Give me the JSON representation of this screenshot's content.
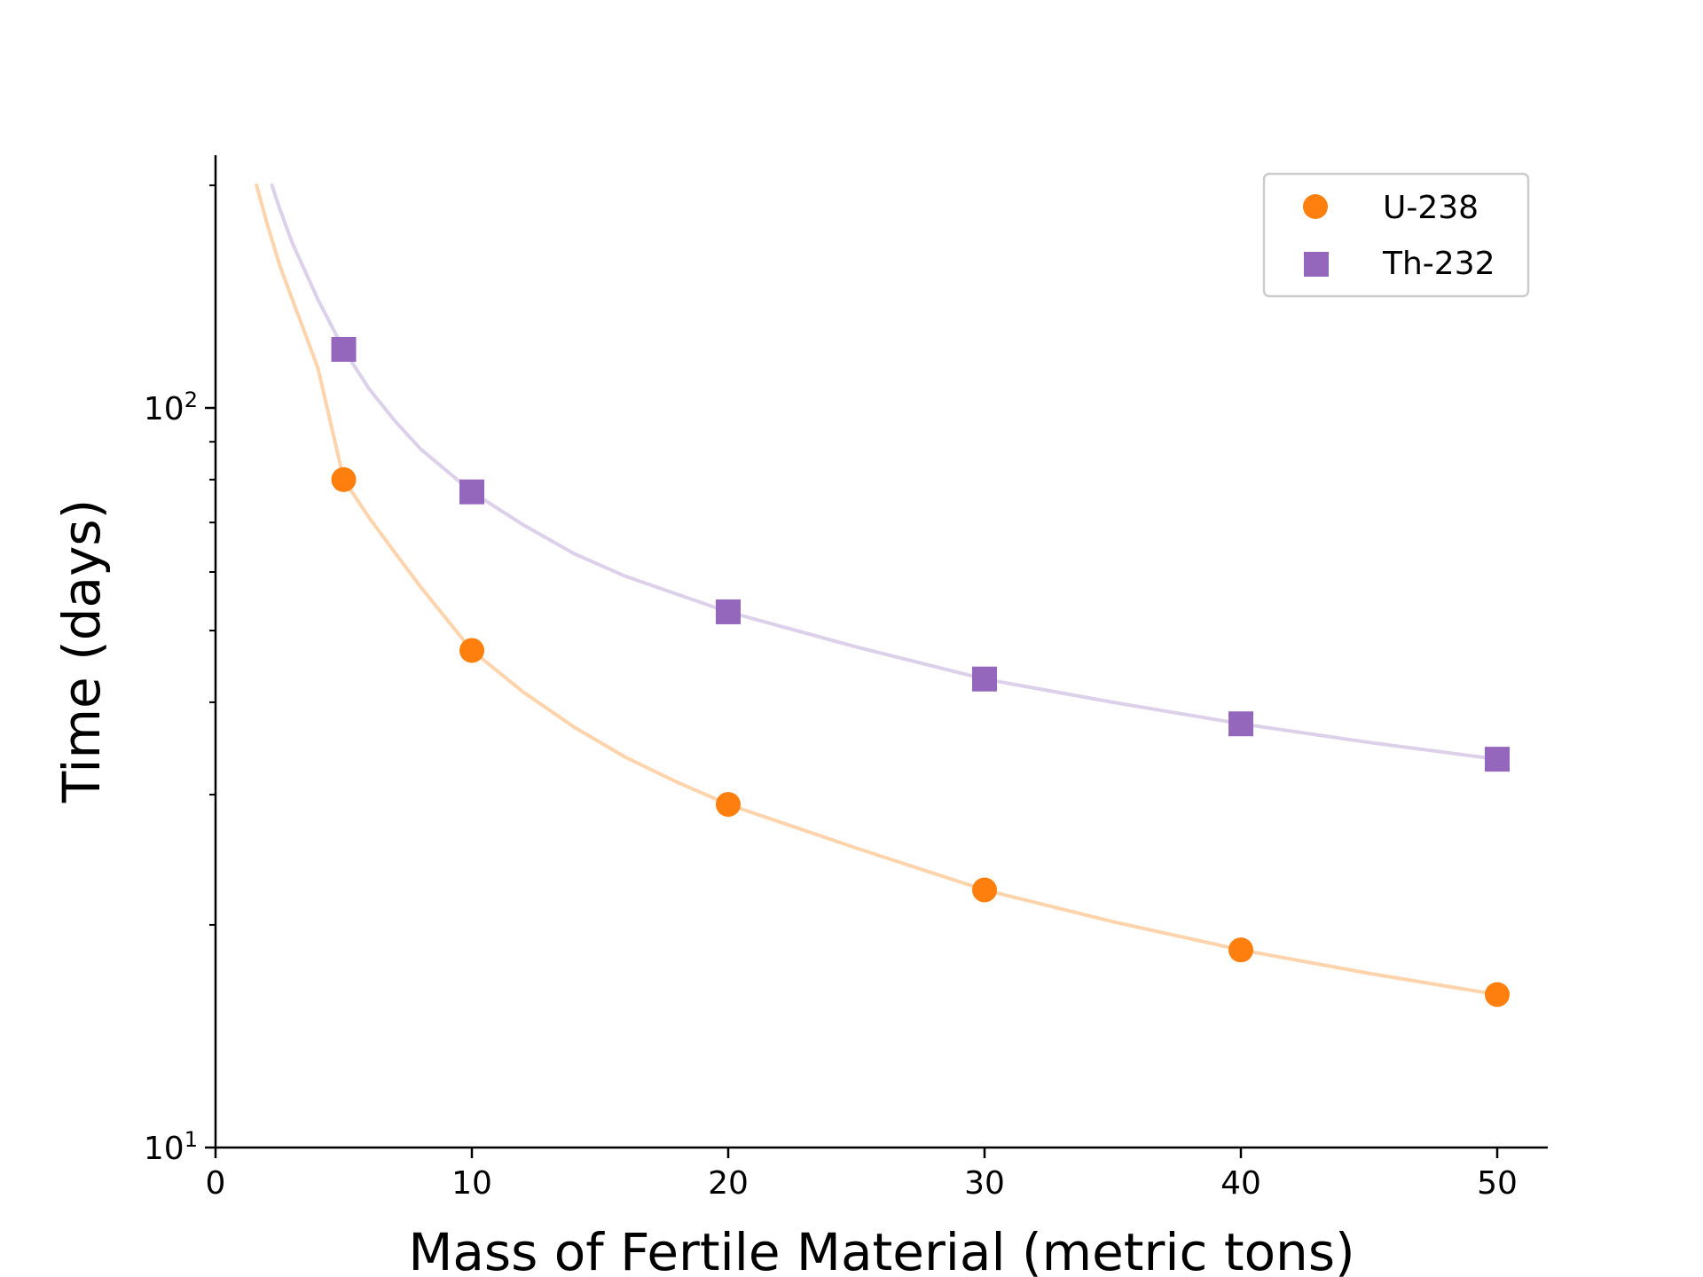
{
  "chart_data": {
    "type": "scatter",
    "title": "",
    "xlabel": "Mass of Fertile Material (metric tons)",
    "ylabel": "Time (days)",
    "xlim": [
      0,
      52
    ],
    "ylim": [
      10,
      200
    ],
    "yscale": "log",
    "grid": false,
    "legend_position": "top-right",
    "x_ticks": [
      {
        "value": 0,
        "label": "0"
      },
      {
        "value": 10,
        "label": "10"
      },
      {
        "value": 20,
        "label": "20"
      },
      {
        "value": 30,
        "label": "30"
      },
      {
        "value": 40,
        "label": "40"
      },
      {
        "value": 50,
        "label": "50"
      }
    ],
    "y_ticks": [
      {
        "value": 10,
        "base": "10",
        "exp": "1"
      },
      {
        "value": 100,
        "base": "10",
        "exp": "2"
      }
    ],
    "series": [
      {
        "name": "U-238",
        "color": "#ff7f0e",
        "fit_color": "#ffd3ab",
        "marker": "circle",
        "x": [
          5,
          10,
          20,
          30,
          40,
          50
        ],
        "y": [
          80,
          47,
          29.1,
          22.3,
          18.5,
          16.1
        ],
        "fit_curve": [
          [
            1.6,
            200
          ],
          [
            2,
            178
          ],
          [
            2.5,
            156
          ],
          [
            3,
            140
          ],
          [
            3.5,
            126
          ],
          [
            4,
            113
          ],
          [
            5,
            80
          ],
          [
            6,
            71
          ],
          [
            7,
            63.7
          ],
          [
            8,
            57.3
          ],
          [
            10,
            47
          ],
          [
            12,
            41.3
          ],
          [
            14,
            37
          ],
          [
            16,
            33.7
          ],
          [
            18,
            31.2
          ],
          [
            20,
            29.1
          ],
          [
            25,
            25.4
          ],
          [
            30,
            22.3
          ],
          [
            35,
            20.2
          ],
          [
            40,
            18.5
          ],
          [
            45,
            17.2
          ],
          [
            50,
            16.1
          ]
        ]
      },
      {
        "name": "Th-232",
        "color": "#9467bd",
        "fit_color": "#dcd0ea",
        "marker": "square",
        "x": [
          5,
          10,
          20,
          30,
          40,
          50
        ],
        "y": [
          120,
          77,
          53,
          43,
          37.4,
          33.5
        ],
        "fit_curve": [
          [
            2.2,
            200
          ],
          [
            2.5,
            186
          ],
          [
            3,
            167
          ],
          [
            3.5,
            153
          ],
          [
            4,
            140
          ],
          [
            5,
            120
          ],
          [
            6,
            106
          ],
          [
            7,
            96
          ],
          [
            8,
            88
          ],
          [
            10,
            77
          ],
          [
            12,
            69.5
          ],
          [
            14,
            63.5
          ],
          [
            16,
            59.2
          ],
          [
            18,
            56
          ],
          [
            20,
            53
          ],
          [
            25,
            47.5
          ],
          [
            30,
            43
          ],
          [
            35,
            40
          ],
          [
            40,
            37.4
          ],
          [
            45,
            35.3
          ],
          [
            50,
            33.5
          ]
        ]
      }
    ]
  }
}
